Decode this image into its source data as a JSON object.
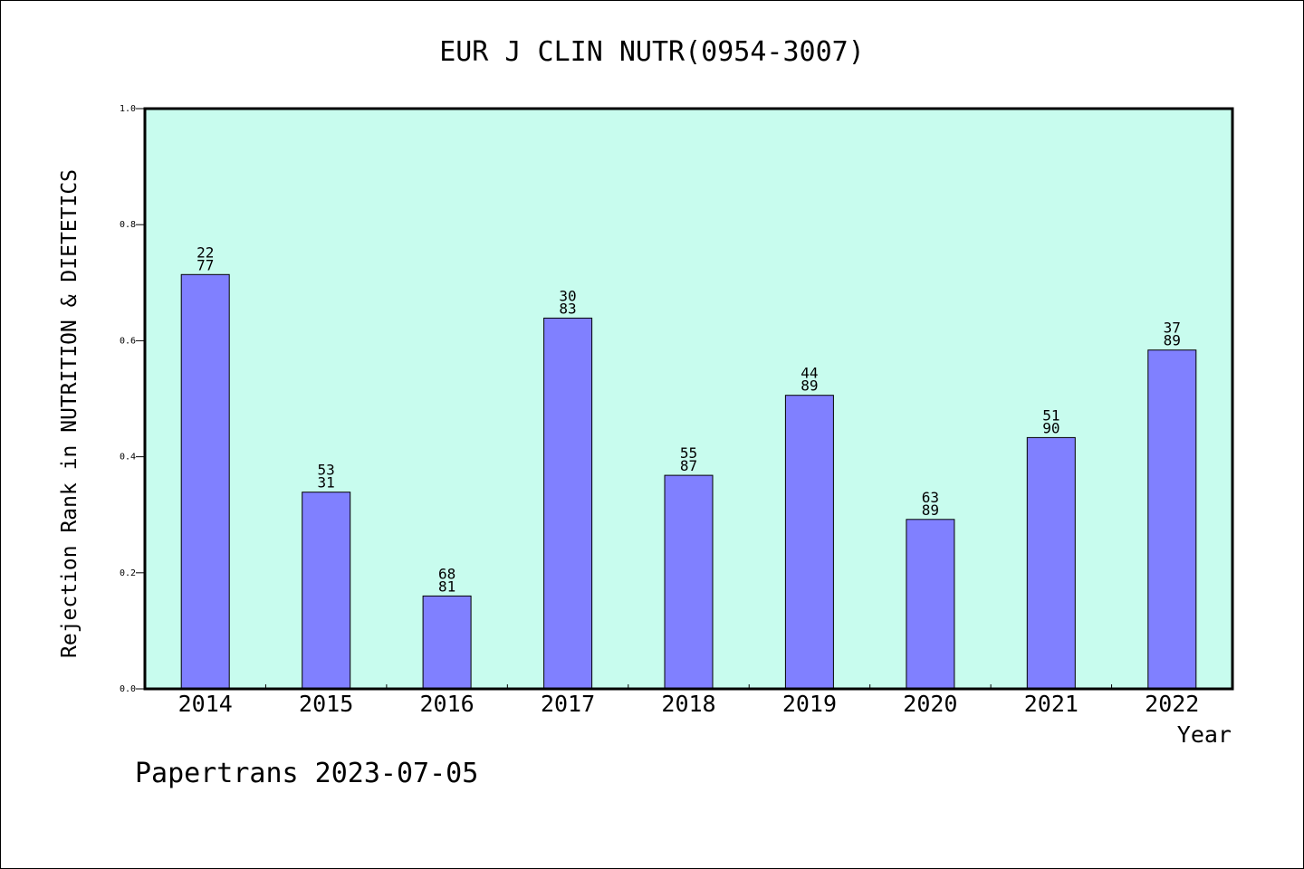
{
  "chart_data": {
    "type": "bar",
    "title": "EUR J CLIN NUTR(0954-3007)",
    "xlabel": "Year",
    "ylabel": "Rejection Rank in NUTRITION & DIETETICS",
    "ylim": [
      0,
      1.0
    ],
    "yticks": [
      "0.0",
      "0.2",
      "0.4",
      "0.6",
      "0.8",
      "1.0"
    ],
    "categories": [
      "2014",
      "2015",
      "2016",
      "2017",
      "2018",
      "2019",
      "2020",
      "2021",
      "2022"
    ],
    "values": [
      0.714,
      0.339,
      0.16,
      0.639,
      0.368,
      0.506,
      0.292,
      0.433,
      0.584
    ],
    "labels_top": [
      "22",
      "53",
      "68",
      "30",
      "55",
      "44",
      "63",
      "51",
      "37"
    ],
    "labels_bottom": [
      "77",
      "31",
      "81",
      "83",
      "87",
      "89",
      "89",
      "90",
      "89"
    ],
    "grid": false,
    "legend": "none",
    "colors": {
      "bar": "#8080ff",
      "plot_bg": "#c8fcee",
      "axis": "#000000"
    }
  },
  "footer": {
    "text": "Papertrans 2023-07-05"
  }
}
